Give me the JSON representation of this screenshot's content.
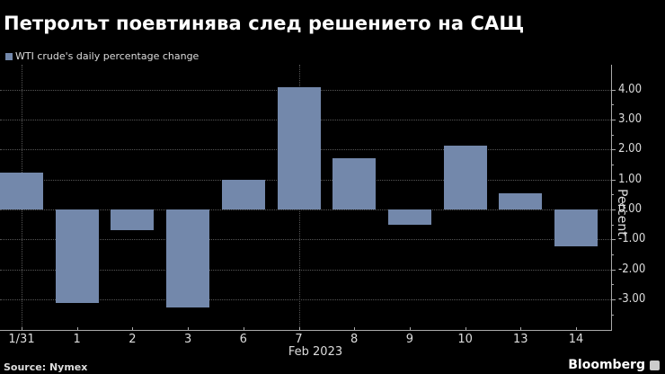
{
  "header": {
    "title": "Петролът поевтинява след решението на САЩ",
    "legend_label": "WTI crude's daily percentage change"
  },
  "footer": {
    "source": "Source: Nymex",
    "brand": "Bloomberg"
  },
  "colors": {
    "background": "#000000",
    "bar": "#7388ab",
    "text": "#dddddd"
  },
  "chart_data": {
    "type": "bar",
    "title": "Петролът поевтинява след решението на САЩ",
    "legend": [
      "WTI crude's daily percentage change"
    ],
    "legend_position": "top-left",
    "categories": [
      "1/31",
      "1",
      "2",
      "3",
      "6",
      "7",
      "8",
      "9",
      "10",
      "13",
      "14"
    ],
    "series": [
      {
        "name": "WTI crude's daily percentage change",
        "values": [
          1.24,
          -3.11,
          -0.68,
          -3.27,
          0.99,
          4.09,
          1.72,
          -0.52,
          2.13,
          0.54,
          -1.23
        ]
      }
    ],
    "xlabel": "Feb 2023",
    "ylabel": "Percent",
    "y_ticks": [
      "4.00",
      "3.00",
      "2.00",
      "1.00",
      "0.00",
      "-1.00",
      "-2.00",
      "-3.00"
    ],
    "ylim": [
      -4.0,
      4.8
    ],
    "y_axis_position": "right",
    "grid": true,
    "source": "Source: Nymex"
  }
}
